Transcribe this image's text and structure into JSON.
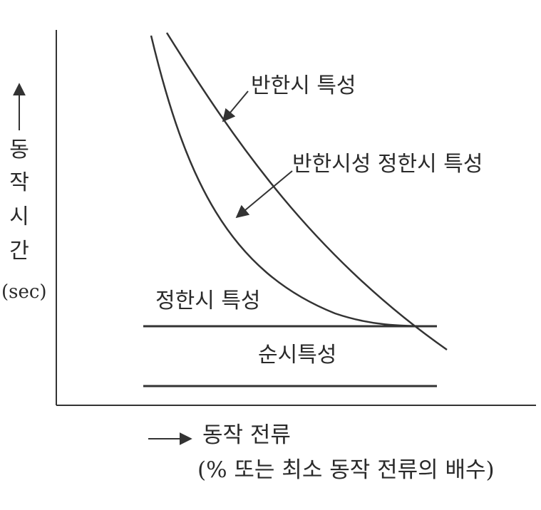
{
  "diagram": {
    "curve_labels": {
      "inverse_time": "반한시 특성",
      "inverse_definite_time": "반한시성 정한시 특성",
      "definite_time": "정한시 특성",
      "instantaneous": "순시특성"
    },
    "y_axis": {
      "label_chars": [
        "동",
        "작",
        "시",
        "간"
      ],
      "unit": "(sec)"
    },
    "x_axis": {
      "label_line1": "동작 전류",
      "label_line2": "(% 또는 최소 동작 전류의 배수)"
    },
    "line_color": "#333333"
  }
}
